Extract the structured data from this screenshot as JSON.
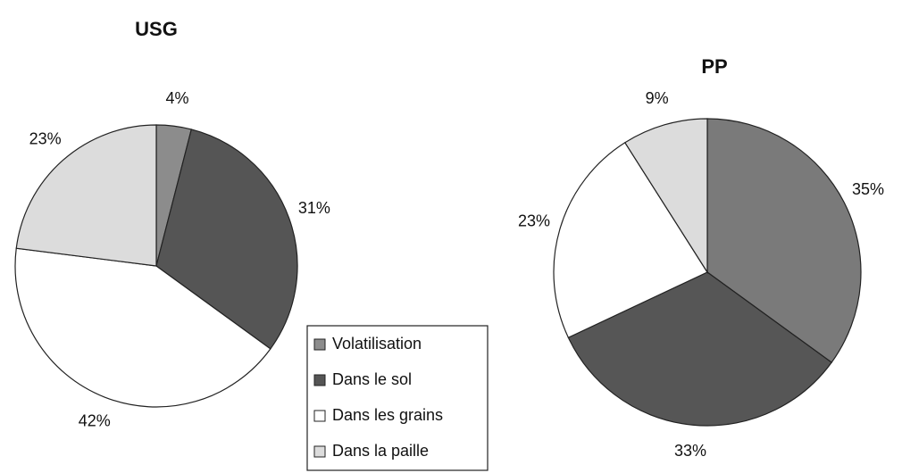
{
  "chart_data": [
    {
      "type": "pie",
      "title": "USG",
      "categories": [
        "Volatilisation",
        "Dans le sol",
        "Dans les grains",
        "Dans la paille"
      ],
      "values": [
        4,
        31,
        42,
        23
      ],
      "value_labels": [
        "4%",
        "31%",
        "42%",
        "23%"
      ],
      "colors": [
        "#8c8c8c",
        "#555555",
        "#ffffff",
        "#dcdcdc"
      ]
    },
    {
      "type": "pie",
      "title": "PP",
      "values": [
        35,
        33,
        23,
        9
      ],
      "value_labels": [
        "35%",
        "33%",
        "23%",
        "9%"
      ],
      "colors": [
        "#7a7a7a",
        "#565656",
        "#ffffff",
        "#dcdcdc"
      ]
    }
  ]
}
